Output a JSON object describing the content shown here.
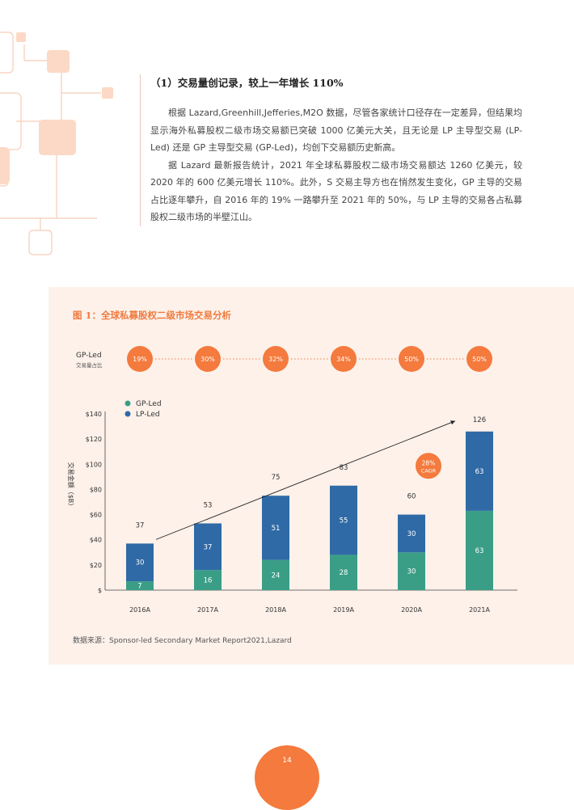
{
  "section": {
    "heading": "（1）交易量创记录，较上一年增长 110%",
    "paragraphs": [
      "根据 Lazard,Greenhill,Jefferies,M2O 数据，尽管各家统计口径存在一定差异，但结果均显示海外私募股权二级市场交易额已突破 1000 亿美元大关，且无论是 LP 主导型交易 (LP-Led) 还是 GP 主导型交易 (GP-Led)，均创下交易额历史新高。",
      "据 Lazard 最新报告统计，2021 年全球私募股权二级市场交易额达 1260 亿美元，较 2020 年的 600 亿美元增长 110%。此外，S 交易主导方也在悄然发生变化，GP 主导的交易占比逐年攀升，自 2016 年的 19% 一路攀升至 2021 年的 50%，与 LP 主导的交易各占私募股权二级市场的半壁江山。"
    ]
  },
  "figure": {
    "title": "图 1：全球私募股权二级市场交易分析",
    "source": "数据来源：Sponsor-led Secondary Market Report2021,Lazard"
  },
  "chart_data": {
    "type": "bar",
    "stacked": true,
    "categories": [
      "2016A",
      "2017A",
      "2018A",
      "2019A",
      "2020A",
      "2021A"
    ],
    "series": [
      {
        "name": "GP-Led",
        "values": [
          7,
          16,
          24,
          28,
          30,
          63
        ],
        "color": "#3a9e86"
      },
      {
        "name": "LP-Led",
        "values": [
          30,
          37,
          51,
          55,
          30,
          63
        ],
        "color": "#2f6aa6"
      }
    ],
    "totals": [
      37,
      53,
      75,
      83,
      60,
      126
    ],
    "ylabel": "交易金额（$B）",
    "ylim": [
      0,
      140
    ],
    "yticks": [
      "$",
      "$20",
      "$40",
      "$60",
      "$80",
      "$100",
      "$120",
      "$140"
    ],
    "legend_position": "top-left",
    "gp_share": {
      "label": "GP-Led",
      "sublabel": "交易量占比",
      "values": [
        "19%",
        "30%",
        "32%",
        "34%",
        "50%",
        "50%"
      ],
      "color": "#f47a3d"
    },
    "cagr_badge": {
      "value": "28%",
      "label": "CAGR"
    },
    "grid": false
  },
  "page": {
    "number": "14"
  },
  "colors": {
    "accent": "#f47a3d",
    "gp": "#3a9e86",
    "lp": "#2f6aa6",
    "panel": "#fdf1ea"
  }
}
